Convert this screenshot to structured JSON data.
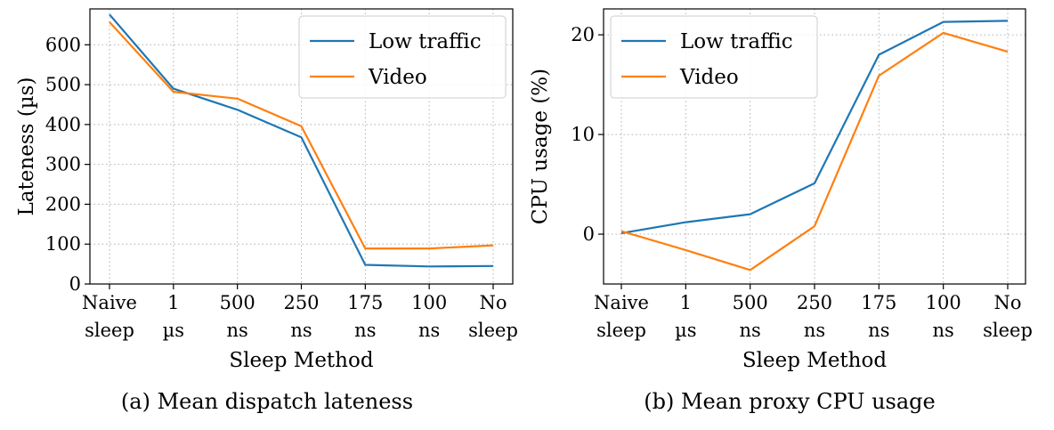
{
  "chart_data": [
    {
      "type": "line",
      "caption": "(a) Mean dispatch lateness",
      "xlabel": "Sleep Method",
      "ylabel": "Lateness (µs)",
      "categories": [
        [
          "Naive",
          "sleep"
        ],
        [
          "1",
          "µs"
        ],
        [
          "500",
          "ns"
        ],
        [
          "250",
          "ns"
        ],
        [
          "175",
          "ns"
        ],
        [
          "100",
          "ns"
        ],
        [
          "No",
          "sleep"
        ]
      ],
      "ylim": [
        0,
        690
      ],
      "yticks": [
        0,
        100,
        200,
        300,
        400,
        500,
        600
      ],
      "grid": true,
      "legend": "top-right",
      "series": [
        {
          "name": "Low traffic",
          "color": "#1f77b4",
          "values": [
            676,
            490,
            437,
            368,
            48,
            44,
            45
          ]
        },
        {
          "name": "Video",
          "color": "#ff7f0e",
          "values": [
            657,
            482,
            465,
            396,
            89,
            89,
            97
          ]
        }
      ]
    },
    {
      "type": "line",
      "caption": "(b) Mean proxy CPU usage",
      "xlabel": "Sleep Method",
      "ylabel": "CPU usage (%)",
      "categories": [
        [
          "Naive",
          "sleep"
        ],
        [
          "1",
          "µs"
        ],
        [
          "500",
          "ns"
        ],
        [
          "250",
          "ns"
        ],
        [
          "175",
          "ns"
        ],
        [
          "100",
          "ns"
        ],
        [
          "No",
          "sleep"
        ]
      ],
      "ylim": [
        -5,
        22.6
      ],
      "yticks": [
        0,
        10,
        20
      ],
      "grid": true,
      "legend": "top-left",
      "series": [
        {
          "name": "Low traffic",
          "color": "#1f77b4",
          "values": [
            0.1,
            1.2,
            2.0,
            5.1,
            18.0,
            21.3,
            21.4
          ]
        },
        {
          "name": "Video",
          "color": "#ff7f0e",
          "values": [
            0.3,
            -1.6,
            -3.6,
            0.8,
            15.9,
            20.2,
            18.3
          ]
        }
      ]
    }
  ]
}
